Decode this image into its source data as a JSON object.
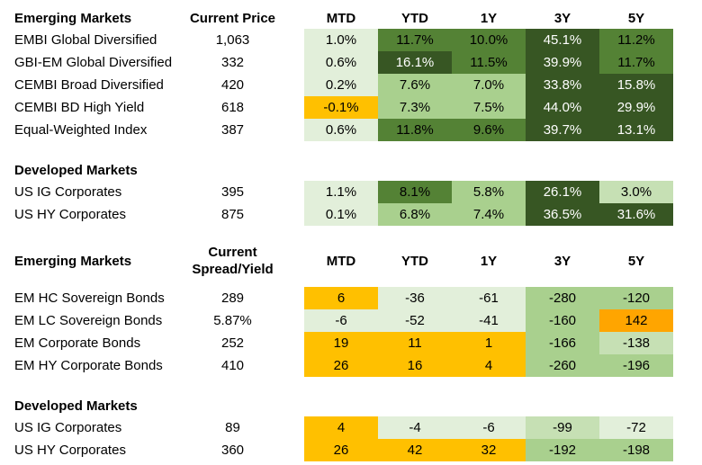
{
  "palette": {
    "faint": "#E2EFDA",
    "lighter": "#C6E0B4",
    "light": "#A9D08E",
    "dark": "#548235",
    "darkest": "#375623",
    "gold": "#FFC000",
    "orange": "#FFA500",
    "white": "#FFFFFF",
    "black": "#000000"
  },
  "columns": [
    "MTD",
    "YTD",
    "1Y",
    "3Y",
    "5Y"
  ],
  "sections": [
    {
      "id": "emerging-price",
      "title": "Emerging Markets",
      "value_header": "Current Price",
      "show_columns": true,
      "rows": [
        {
          "label": "EMBI Global Diversified",
          "value": "1,063",
          "cells": [
            {
              "v": "1.0%",
              "bg": "faint"
            },
            {
              "v": "11.7%",
              "bg": "dark"
            },
            {
              "v": "10.0%",
              "bg": "dark"
            },
            {
              "v": "45.1%",
              "bg": "darkest",
              "fg": "white"
            },
            {
              "v": "11.2%",
              "bg": "dark"
            }
          ]
        },
        {
          "label": "GBI-EM Global Diversified",
          "value": "332",
          "cells": [
            {
              "v": "0.6%",
              "bg": "faint"
            },
            {
              "v": "16.1%",
              "bg": "darkest",
              "fg": "white"
            },
            {
              "v": "11.5%",
              "bg": "dark"
            },
            {
              "v": "39.9%",
              "bg": "darkest",
              "fg": "white"
            },
            {
              "v": "11.7%",
              "bg": "dark"
            }
          ]
        },
        {
          "label": "CEMBI Broad Diversified",
          "value": "420",
          "cells": [
            {
              "v": "0.2%",
              "bg": "faint"
            },
            {
              "v": "7.6%",
              "bg": "light"
            },
            {
              "v": "7.0%",
              "bg": "light"
            },
            {
              "v": "33.8%",
              "bg": "darkest",
              "fg": "white"
            },
            {
              "v": "15.8%",
              "bg": "darkest",
              "fg": "white"
            }
          ]
        },
        {
          "label": "CEMBI BD High Yield",
          "value": "618",
          "cells": [
            {
              "v": "-0.1%",
              "bg": "gold"
            },
            {
              "v": "7.3%",
              "bg": "light"
            },
            {
              "v": "7.5%",
              "bg": "light"
            },
            {
              "v": "44.0%",
              "bg": "darkest",
              "fg": "white"
            },
            {
              "v": "29.9%",
              "bg": "darkest",
              "fg": "white"
            }
          ]
        },
        {
          "label": "Equal-Weighted Index",
          "value": "387",
          "cells": [
            {
              "v": "0.6%",
              "bg": "faint"
            },
            {
              "v": "11.8%",
              "bg": "dark"
            },
            {
              "v": "9.6%",
              "bg": "dark"
            },
            {
              "v": "39.7%",
              "bg": "darkest",
              "fg": "white"
            },
            {
              "v": "13.1%",
              "bg": "darkest",
              "fg": "white"
            }
          ]
        }
      ]
    },
    {
      "id": "developed-price",
      "title": "Developed Markets",
      "value_header": null,
      "show_columns": false,
      "rows": [
        {
          "label": "US IG Corporates",
          "value": "395",
          "cells": [
            {
              "v": "1.1%",
              "bg": "faint"
            },
            {
              "v": "8.1%",
              "bg": "dark"
            },
            {
              "v": "5.8%",
              "bg": "light"
            },
            {
              "v": "26.1%",
              "bg": "darkest",
              "fg": "white"
            },
            {
              "v": "3.0%",
              "bg": "lighter"
            }
          ]
        },
        {
          "label": "US HY Corporates",
          "value": "875",
          "cells": [
            {
              "v": "0.1%",
              "bg": "faint"
            },
            {
              "v": "6.8%",
              "bg": "light"
            },
            {
              "v": "7.4%",
              "bg": "light"
            },
            {
              "v": "36.5%",
              "bg": "darkest",
              "fg": "white"
            },
            {
              "v": "31.6%",
              "bg": "darkest",
              "fg": "white"
            }
          ]
        }
      ]
    },
    {
      "id": "emerging-spread",
      "title": "Emerging Markets",
      "value_header": "Current\nSpread/Yield",
      "show_columns": true,
      "rows": [
        {
          "label": "EM HC Sovereign Bonds",
          "value": "289",
          "cells": [
            {
              "v": "6",
              "bg": "gold"
            },
            {
              "v": "-36",
              "bg": "faint"
            },
            {
              "v": "-61",
              "bg": "faint"
            },
            {
              "v": "-280",
              "bg": "light"
            },
            {
              "v": "-120",
              "bg": "light"
            }
          ]
        },
        {
          "label": "EM LC Sovereign Bonds",
          "value": "5.87%",
          "cells": [
            {
              "v": "-6",
              "bg": "faint"
            },
            {
              "v": "-52",
              "bg": "faint"
            },
            {
              "v": "-41",
              "bg": "faint"
            },
            {
              "v": "-160",
              "bg": "light"
            },
            {
              "v": "142",
              "bg": "orange"
            }
          ]
        },
        {
          "label": "EM Corporate Bonds",
          "value": "252",
          "cells": [
            {
              "v": "19",
              "bg": "gold"
            },
            {
              "v": "11",
              "bg": "gold"
            },
            {
              "v": "1",
              "bg": "gold"
            },
            {
              "v": "-166",
              "bg": "light"
            },
            {
              "v": "-138",
              "bg": "lighter"
            }
          ]
        },
        {
          "label": "EM HY Corporate Bonds",
          "value": "410",
          "cells": [
            {
              "v": "26",
              "bg": "gold"
            },
            {
              "v": "16",
              "bg": "gold"
            },
            {
              "v": "4",
              "bg": "gold"
            },
            {
              "v": "-260",
              "bg": "light"
            },
            {
              "v": "-196",
              "bg": "light"
            }
          ]
        }
      ]
    },
    {
      "id": "developed-spread",
      "title": "Developed Markets",
      "value_header": null,
      "show_columns": false,
      "rows": [
        {
          "label": "US IG Corporates",
          "value": "89",
          "cells": [
            {
              "v": "4",
              "bg": "gold"
            },
            {
              "v": "-4",
              "bg": "faint"
            },
            {
              "v": "-6",
              "bg": "faint"
            },
            {
              "v": "-99",
              "bg": "lighter"
            },
            {
              "v": "-72",
              "bg": "faint"
            }
          ]
        },
        {
          "label": "US HY Corporates",
          "value": "360",
          "cells": [
            {
              "v": "26",
              "bg": "gold"
            },
            {
              "v": "42",
              "bg": "gold"
            },
            {
              "v": "32",
              "bg": "gold"
            },
            {
              "v": "-192",
              "bg": "light"
            },
            {
              "v": "-198",
              "bg": "light"
            }
          ]
        }
      ]
    }
  ]
}
